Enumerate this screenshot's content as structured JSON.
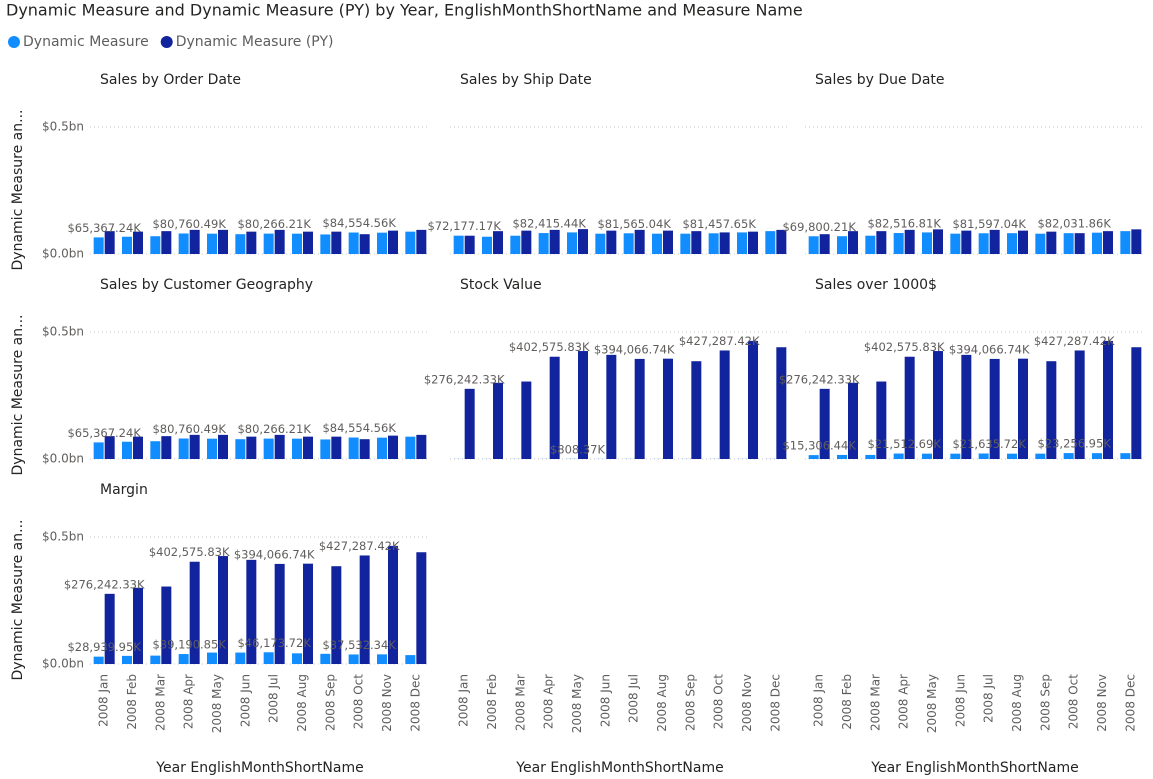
{
  "chart_data": {
    "type": "bar",
    "title": "Dynamic Measure and Dynamic Measure (PY) by Year, EnglishMonthShortName and Measure Name",
    "x_label": "Year EnglishMonthShortName",
    "y_label": "Dynamic Measure an...",
    "categories": [
      "2008 Jan",
      "2008 Feb",
      "2008 Mar",
      "2008 Apr",
      "2008 May",
      "2008 Jun",
      "2008 Jul",
      "2008 Aug",
      "2008 Sep",
      "2008 Oct",
      "2008 Nov",
      "2008 Dec"
    ],
    "ylim": [
      0,
      500000000
    ],
    "yticks": [
      {
        "value": 0,
        "label": "$0.0bn"
      },
      {
        "value": 500000000,
        "label": "$0.5bn"
      }
    ],
    "grid": true,
    "legend": "top-left",
    "series": [
      {
        "name": "Dynamic Measure",
        "color": "#118dff"
      },
      {
        "name": "Dynamic Measure (PY)",
        "color": "#12239e"
      }
    ],
    "panels": [
      {
        "title": "Sales by Order Date",
        "series": [
          {
            "values": [
              65367240,
              68000000,
              70000000,
              80760490,
              80000000,
              78000000,
              80266210,
              80000000,
              77000000,
              84554560,
              84000000,
              88000000
            ],
            "value_labels": [
              "$65,367.24K",
              null,
              null,
              "$80,760.49K",
              null,
              null,
              "$80,266.21K",
              null,
              null,
              "$84,554.56K",
              null,
              null
            ]
          },
          {
            "values": [
              90000000,
              88000000,
              90000000,
              95000000,
              95000000,
              88000000,
              95000000,
              88000000,
              88000000,
              78000000,
              92000000,
              95000000
            ]
          }
        ]
      },
      {
        "title": "Sales by Ship Date",
        "series": [
          {
            "values": [
              72177170,
              68000000,
              72000000,
              82415440,
              85000000,
              80000000,
              81565040,
              80000000,
              80000000,
              81457650,
              85000000,
              90000000
            ],
            "value_labels": [
              "$72,177.17K",
              null,
              null,
              "$82,415.44K",
              null,
              null,
              "$81,565.04K",
              null,
              null,
              "$81,457.65K",
              null,
              null
            ]
          },
          {
            "values": [
              72000000,
              90000000,
              92000000,
              95000000,
              98000000,
              92000000,
              95000000,
              92000000,
              90000000,
              85000000,
              88000000,
              95000000
            ]
          }
        ]
      },
      {
        "title": "Sales by Due Date",
        "series": [
          {
            "values": [
              69800210,
              70000000,
              72000000,
              82516810,
              85000000,
              80000000,
              81597040,
              82000000,
              80000000,
              82031860,
              84000000,
              90000000
            ],
            "value_labels": [
              "$69,800.21K",
              null,
              null,
              "$82,516.81K",
              null,
              null,
              "$81,597.04K",
              null,
              null,
              "$82,031.86K",
              null,
              null
            ]
          },
          {
            "values": [
              78000000,
              90000000,
              90000000,
              95000000,
              97000000,
              92000000,
              95000000,
              92000000,
              88000000,
              82000000,
              90000000,
              97000000
            ]
          }
        ]
      },
      {
        "title": "Sales by Customer Geography",
        "series": [
          {
            "values": [
              65367240,
              68000000,
              70000000,
              80760490,
              80000000,
              78000000,
              80266210,
              80000000,
              77000000,
              84554560,
              84000000,
              88000000
            ],
            "value_labels": [
              "$65,367.24K",
              null,
              null,
              "$80,760.49K",
              null,
              null,
              "$80,266.21K",
              null,
              null,
              "$84,554.56K",
              null,
              null
            ]
          },
          {
            "values": [
              90000000,
              88000000,
              90000000,
              95000000,
              95000000,
              88000000,
              95000000,
              88000000,
              88000000,
              78000000,
              92000000,
              95000000
            ]
          }
        ]
      },
      {
        "title": "Stock Value",
        "series": [
          {
            "values": [
              500000,
              500000,
              500000,
              500000,
              808370,
              500000,
              500000,
              500000,
              500000,
              500000,
              500000,
              500000
            ],
            "value_labels": [
              null,
              null,
              null,
              null,
              "$808.37K",
              null,
              null,
              null,
              null,
              null,
              null,
              null
            ]
          },
          {
            "values": [
              276242330,
              300000000,
              305000000,
              402575830,
              425000000,
              410000000,
              394066740,
              395000000,
              385000000,
              427287420,
              465000000,
              440000000
            ],
            "value_labels": [
              "$276,242.33K",
              null,
              null,
              "$402,575.83K",
              null,
              null,
              "$394,066.74K",
              null,
              null,
              "$427,287.42K",
              null,
              null
            ]
          }
        ]
      },
      {
        "title": "Sales over 1000$",
        "series": [
          {
            "values": [
              15306440,
              16000000,
              16000000,
              21512690,
              21000000,
              21000000,
              21635720,
              21000000,
              21000000,
              23256950,
              23000000,
              23000000
            ],
            "value_labels": [
              "$15,306.44K",
              null,
              null,
              "$21,512.69K",
              null,
              null,
              "$21,635.72K",
              null,
              null,
              "$23,256.95K",
              null,
              null
            ]
          },
          {
            "values": [
              276242330,
              300000000,
              305000000,
              402575830,
              425000000,
              410000000,
              394066740,
              395000000,
              385000000,
              427287420,
              465000000,
              440000000
            ],
            "value_labels": [
              "$276,242.33K",
              null,
              null,
              "$402,575.83K",
              null,
              null,
              "$394,066.74K",
              null,
              null,
              "$427,287.42K",
              null,
              null
            ]
          }
        ]
      },
      {
        "title": "Margin",
        "series": [
          {
            "values": [
              28939950,
              32000000,
              33000000,
              39190850,
              45000000,
              45000000,
              46173720,
              42000000,
              40000000,
              37532340,
              38000000,
              35000000
            ],
            "value_labels": [
              "$28,939.95K",
              null,
              null,
              "$39,190.85K",
              null,
              null,
              "$46,173.72K",
              null,
              null,
              "$37,532.34K",
              null,
              null
            ]
          },
          {
            "values": [
              276242330,
              300000000,
              305000000,
              402575830,
              425000000,
              410000000,
              394066740,
              395000000,
              385000000,
              427287420,
              465000000,
              440000000
            ],
            "value_labels": [
              "$276,242.33K",
              null,
              null,
              "$402,575.83K",
              null,
              null,
              "$394,066.74K",
              null,
              null,
              "$427,287.42K",
              null,
              null
            ]
          }
        ]
      }
    ]
  }
}
